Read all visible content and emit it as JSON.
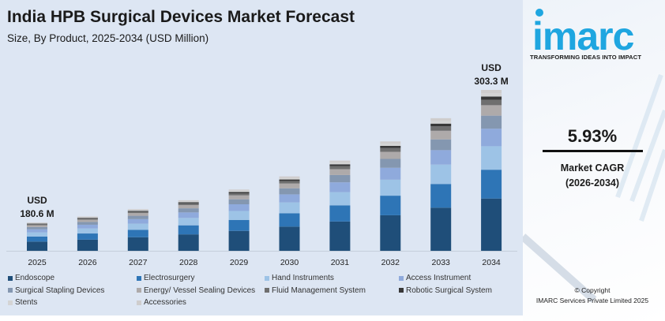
{
  "header": {
    "title": "India HPB Surgical Devices Market Forecast",
    "subtitle": "Size, By Product, 2025-2034 (USD Million)"
  },
  "chart_data": {
    "type": "bar",
    "stacked": true,
    "title": "India HPB Surgical Devices Market Forecast",
    "subtitle": "Size, By Product, 2025-2034 (USD Million)",
    "categories": [
      "2025",
      "2026",
      "2027",
      "2028",
      "2029",
      "2030",
      "2031",
      "2032",
      "2033",
      "2034"
    ],
    "totals": [
      180.6,
      191.3,
      202.7,
      214.7,
      227.4,
      240.9,
      255.2,
      270.3,
      286.3,
      303.3
    ],
    "annotations": [
      {
        "category": "2025",
        "line1": "USD",
        "line2": "180.6 M"
      },
      {
        "category": "2034",
        "line1": "USD",
        "line2": "303.3 M"
      }
    ],
    "series": [
      {
        "name": "Endoscope",
        "share_pct": 32.5,
        "color": "#1f4e79"
      },
      {
        "name": "Electrosurgery",
        "share_pct": 17.9,
        "color": "#2e75b6"
      },
      {
        "name": "Hand Instruments",
        "share_pct": 14.6,
        "color": "#9dc3e6"
      },
      {
        "name": "Access Instrument",
        "share_pct": 10.9,
        "color": "#8faadc"
      },
      {
        "name": "Surgical Stapling Devices",
        "share_pct": 8.1,
        "color": "#8497b0"
      },
      {
        "name": "Energy/ Vessel Sealing Devices",
        "share_pct": 6.5,
        "color": "#aeaaaa"
      },
      {
        "name": "Fluid Management System",
        "share_pct": 3.4,
        "color": "#6f6f6f"
      },
      {
        "name": "Robotic Surgical System",
        "share_pct": 2.0,
        "color": "#383838"
      },
      {
        "name": "Stents",
        "share_pct": 2.0,
        "color": "#d4d4d4"
      },
      {
        "name": "Accessories",
        "share_pct": 2.1,
        "color": "#cfcdcd"
      }
    ],
    "xlabel": "",
    "ylabel": "",
    "grid": false,
    "legend": "bottom"
  },
  "brand": {
    "logo_text": "imarc",
    "tagline": "TRANSFORMING IDEAS INTO IMPACT",
    "color": "#1fa6e0"
  },
  "cagr": {
    "value": "5.93%",
    "label": "Market CAGR",
    "period": "(2026-2034)"
  },
  "footer": {
    "copyright": "© Copyright",
    "company": "IMARC Services Private Limited 2025"
  }
}
